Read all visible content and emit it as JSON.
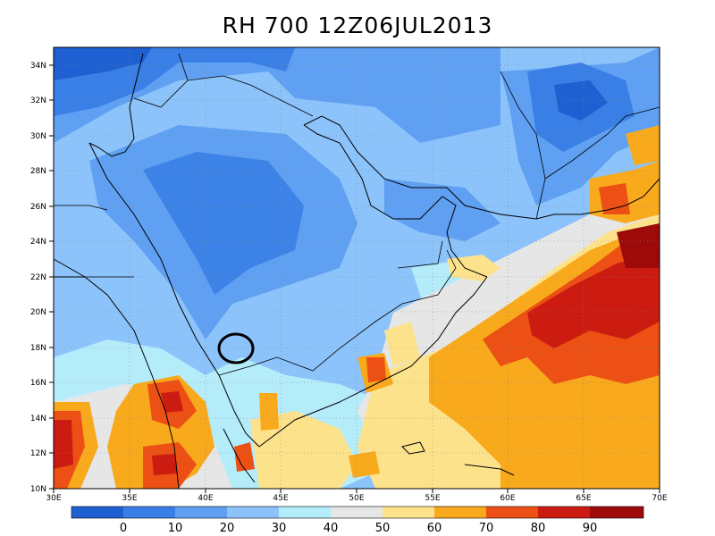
{
  "title": "RH 700 12Z06JUL2013",
  "x_ticks": [
    "30E",
    "35E",
    "40E",
    "45E",
    "50E",
    "55E",
    "60E",
    "65E",
    "70E"
  ],
  "y_ticks": [
    "10N",
    "12N",
    "14N",
    "16N",
    "18N",
    "20N",
    "22N",
    "24N",
    "26N",
    "28N",
    "30N",
    "32N",
    "34N"
  ],
  "colorbar": {
    "labels": [
      "0",
      "10",
      "20",
      "30",
      "40",
      "50",
      "60",
      "70",
      "80",
      "90"
    ],
    "colors": [
      "#1e5fd2",
      "#3a7fe6",
      "#5fa0f2",
      "#8cc3fa",
      "#b4ecfa",
      "#e6e6e6",
      "#fde28c",
      "#f8a91c",
      "#ec5014",
      "#cc1c12",
      "#9c0a0a"
    ]
  },
  "chart_data": {
    "type": "heatmap",
    "variable": "RH 700",
    "time": "12Z06JUL2013",
    "lon_range": [
      30,
      70
    ],
    "lat_range": [
      10,
      35
    ],
    "levels": [
      0,
      10,
      20,
      30,
      40,
      50,
      60,
      70,
      80,
      90
    ],
    "grid": "dotted"
  }
}
